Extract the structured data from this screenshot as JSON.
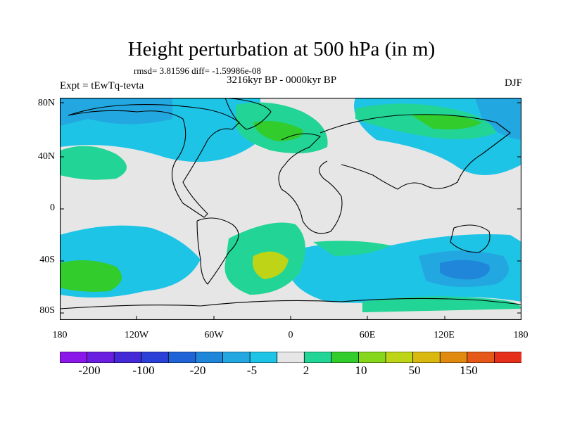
{
  "header": {
    "title": "Height perturbation at 500 hPa (in m)",
    "stats": "rmsd= 3.81596 diff= -1.59986e-08",
    "period": "3216kyr BP - 0000kyr BP",
    "experiment": "Expt = tEwTq-tevta",
    "season": "DJF"
  },
  "axes": {
    "lat_labels": [
      "80N",
      "40N",
      "0",
      "40S",
      "80S"
    ],
    "lon_labels": [
      "180",
      "120W",
      "60W",
      "0",
      "60E",
      "120E",
      "180"
    ]
  },
  "colorbar": {
    "colors": [
      "#8a18e8",
      "#6a1fe0",
      "#4528d6",
      "#2a40d6",
      "#1f63d6",
      "#1f86d9",
      "#23a7e0",
      "#1ec4e6",
      "#e6e6e6",
      "#22d496",
      "#32cc2c",
      "#86d61c",
      "#bed416",
      "#d9b80f",
      "#e08a0f",
      "#e6581a",
      "#e62f1a"
    ],
    "labels": [
      "-200",
      "-100",
      "-20",
      "-5",
      "2",
      "10",
      "50",
      "150"
    ]
  },
  "map_fields": {
    "colors": {
      "background": "#e6e6e6",
      "teal_pos": "#22d496",
      "green_pos": "#32cc2c",
      "yellow_green": "#bed416",
      "cyan_neg": "#1ec4e6",
      "sky_neg": "#23a7e0",
      "blue_neg": "#1f86d9"
    }
  }
}
